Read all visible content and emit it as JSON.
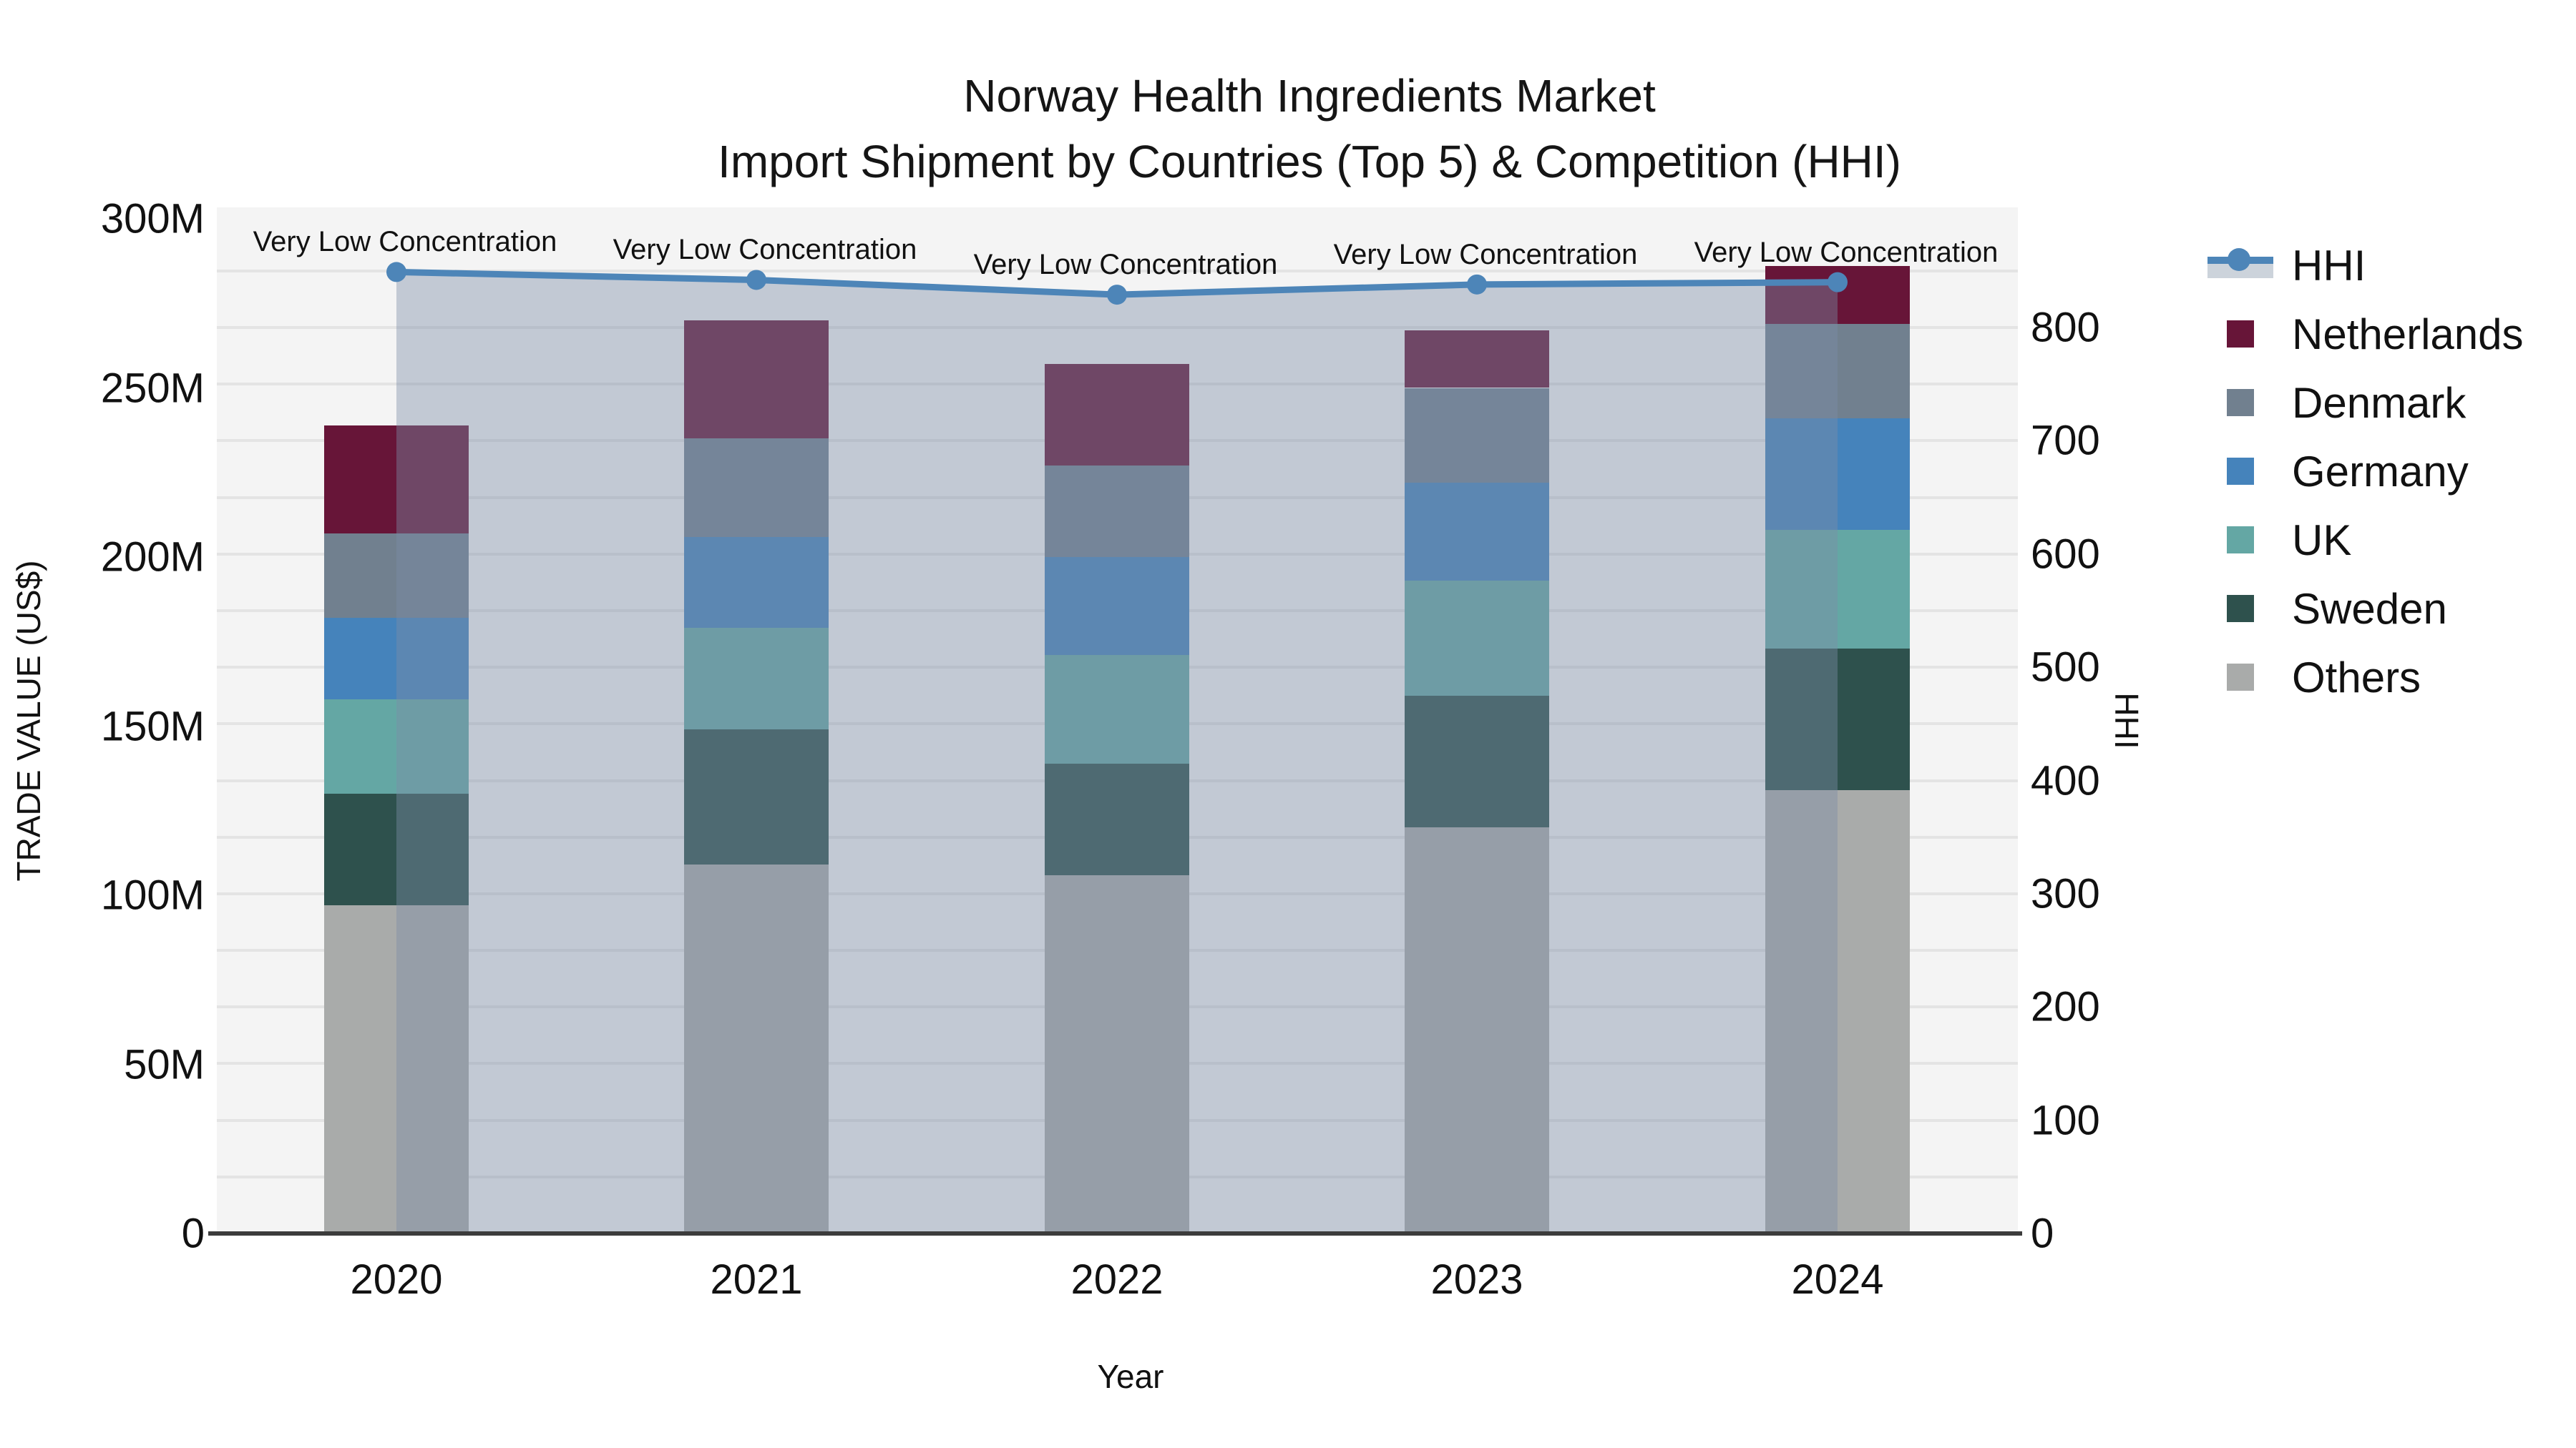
{
  "title": {
    "line1": "Norway Health Ingredients Market",
    "line2": "Import Shipment by Countries (Top 5) & Competition (HHI)"
  },
  "axes": {
    "x": {
      "label": "Year",
      "tick_labels": [
        "2020",
        "2021",
        "2022",
        "2023",
        "2024"
      ]
    },
    "y_left": {
      "label": "TRADE VALUE (US$)",
      "tick_labels": [
        "0",
        "50M",
        "100M",
        "150M",
        "200M",
        "250M",
        "300M"
      ],
      "tick_values": [
        0,
        50,
        100,
        150,
        200,
        250,
        300
      ],
      "range": [
        0,
        300
      ]
    },
    "y_right": {
      "label": "HHI",
      "tick_labels": [
        "0",
        "100",
        "200",
        "300",
        "400",
        "500",
        "600",
        "700",
        "800"
      ],
      "tick_values": [
        0,
        100,
        200,
        300,
        400,
        500,
        600,
        700,
        800
      ],
      "range": [
        0,
        906
      ]
    }
  },
  "legend": {
    "items": [
      {
        "name": "HHI",
        "type": "line",
        "color": "#4d85b8"
      },
      {
        "name": "Netherlands",
        "type": "square",
        "color": "#671538"
      },
      {
        "name": "Denmark",
        "type": "square",
        "color": "#71808f"
      },
      {
        "name": "Germany",
        "type": "square",
        "color": "#4583bb"
      },
      {
        "name": "UK",
        "type": "square",
        "color": "#64a7a4"
      },
      {
        "name": "Sweden",
        "type": "square",
        "color": "#2e514d"
      },
      {
        "name": "Others",
        "type": "square",
        "color": "#a9abaa"
      }
    ]
  },
  "annotations": {
    "text": "Very Low Concentration",
    "per_year": [
      "Very Low Concentration",
      "Very Low Concentration",
      "Very Low Concentration",
      "Very Low Concentration",
      "Very Low Concentration"
    ]
  },
  "colors": {
    "hhi_line": "#4d85b8",
    "hhi_area_fill": "rgba(125,140,166,0.42)",
    "plot_background": "#f4f4f4",
    "gridline": "#e4e4e4",
    "axis_spine": "#3c3c3c",
    "netherlands": "#671538",
    "denmark": "#71808f",
    "germany": "#4583bb",
    "uk": "#64a7a4",
    "sweden": "#2e514d",
    "others": "#a9abaa"
  },
  "chart_data": {
    "type": "bar",
    "subtype": "stacked-bars-with-line-overlay",
    "title": "Norway Health Ingredients Market — Import Shipment by Countries (Top 5) & Competition (HHI)",
    "xlabel": "Year",
    "ylabel_left": "TRADE VALUE (US$)",
    "ylabel_right": "HHI",
    "categories": [
      "2020",
      "2021",
      "2022",
      "2023",
      "2024"
    ],
    "stack_order_bottom_to_top": [
      "Others",
      "Sweden",
      "UK",
      "Germany",
      "Denmark",
      "Netherlands"
    ],
    "series": [
      {
        "name": "Netherlands",
        "axis": "left",
        "unit": "M US$",
        "values": [
          32,
          35,
          30,
          17,
          17
        ]
      },
      {
        "name": "Denmark",
        "axis": "left",
        "unit": "M US$",
        "values": [
          25,
          29,
          27,
          28,
          28
        ]
      },
      {
        "name": "Germany",
        "axis": "left",
        "unit": "M US$",
        "values": [
          24,
          27,
          29,
          29,
          33
        ]
      },
      {
        "name": "UK",
        "axis": "left",
        "unit": "M US$",
        "values": [
          28,
          30,
          32,
          34,
          35
        ]
      },
      {
        "name": "Sweden",
        "axis": "left",
        "unit": "M US$",
        "values": [
          33,
          40,
          33,
          39,
          42
        ]
      },
      {
        "name": "Others",
        "axis": "left",
        "unit": "M US$",
        "values": [
          97,
          109,
          106,
          120,
          131
        ]
      }
    ],
    "totals": [
      239,
      270,
      257,
      267,
      286
    ],
    "line_series": {
      "name": "HHI",
      "axis": "right",
      "values": [
        849,
        842,
        829,
        838,
        840
      ]
    },
    "ylim_left": [
      0,
      300
    ],
    "ylim_right": [
      0,
      906
    ],
    "grid": "horizontal, every 50 HHI units",
    "legend_position": "right, outside plot"
  }
}
